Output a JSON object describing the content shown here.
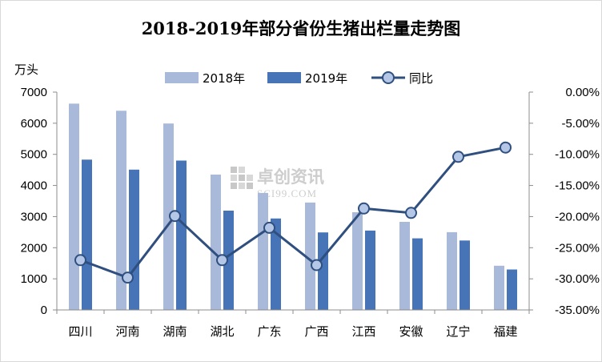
{
  "watermark": {
    "name": "卓创资讯",
    "site": "SCI99.COM"
  },
  "chart_data": {
    "type": "bar",
    "title": "2018-2019年部分省份生猪出栏量走势图",
    "ylabel": "万头",
    "categories": [
      "四川",
      "河南",
      "湖南",
      "湖北",
      "广东",
      "广西",
      "江西",
      "安徽",
      "辽宁",
      "福建"
    ],
    "series": [
      {
        "name": "2018年",
        "type": "bar",
        "axis": "left",
        "color": "#a9b9d9",
        "values": [
          6630,
          6400,
          5990,
          4350,
          3760,
          3450,
          3140,
          2830,
          2500,
          1420
        ]
      },
      {
        "name": "2019年",
        "type": "bar",
        "axis": "left",
        "color": "#4674b6",
        "values": [
          4830,
          4510,
          4800,
          3190,
          2940,
          2490,
          2550,
          2300,
          2230,
          1300
        ]
      },
      {
        "name": "同比",
        "type": "line",
        "axis": "right",
        "color": "#2f4f7f",
        "marker_fill": "#b4c7e7",
        "values": [
          -27.0,
          -29.8,
          -19.9,
          -27.0,
          -21.8,
          -27.8,
          -18.7,
          -19.4,
          -10.4,
          -8.9
        ]
      }
    ],
    "ylim": [
      0,
      7000
    ],
    "yticks": [
      "0",
      "1000",
      "2000",
      "3000",
      "4000",
      "5000",
      "6000",
      "7000"
    ],
    "y2lim": [
      -35,
      0
    ],
    "y2ticks": [
      "-35.00%",
      "-30.00%",
      "-25.00%",
      "-20.00%",
      "-15.00%",
      "-10.00%",
      "-5.00%",
      "0.00%"
    ],
    "grid": false,
    "legend": "top-center"
  }
}
